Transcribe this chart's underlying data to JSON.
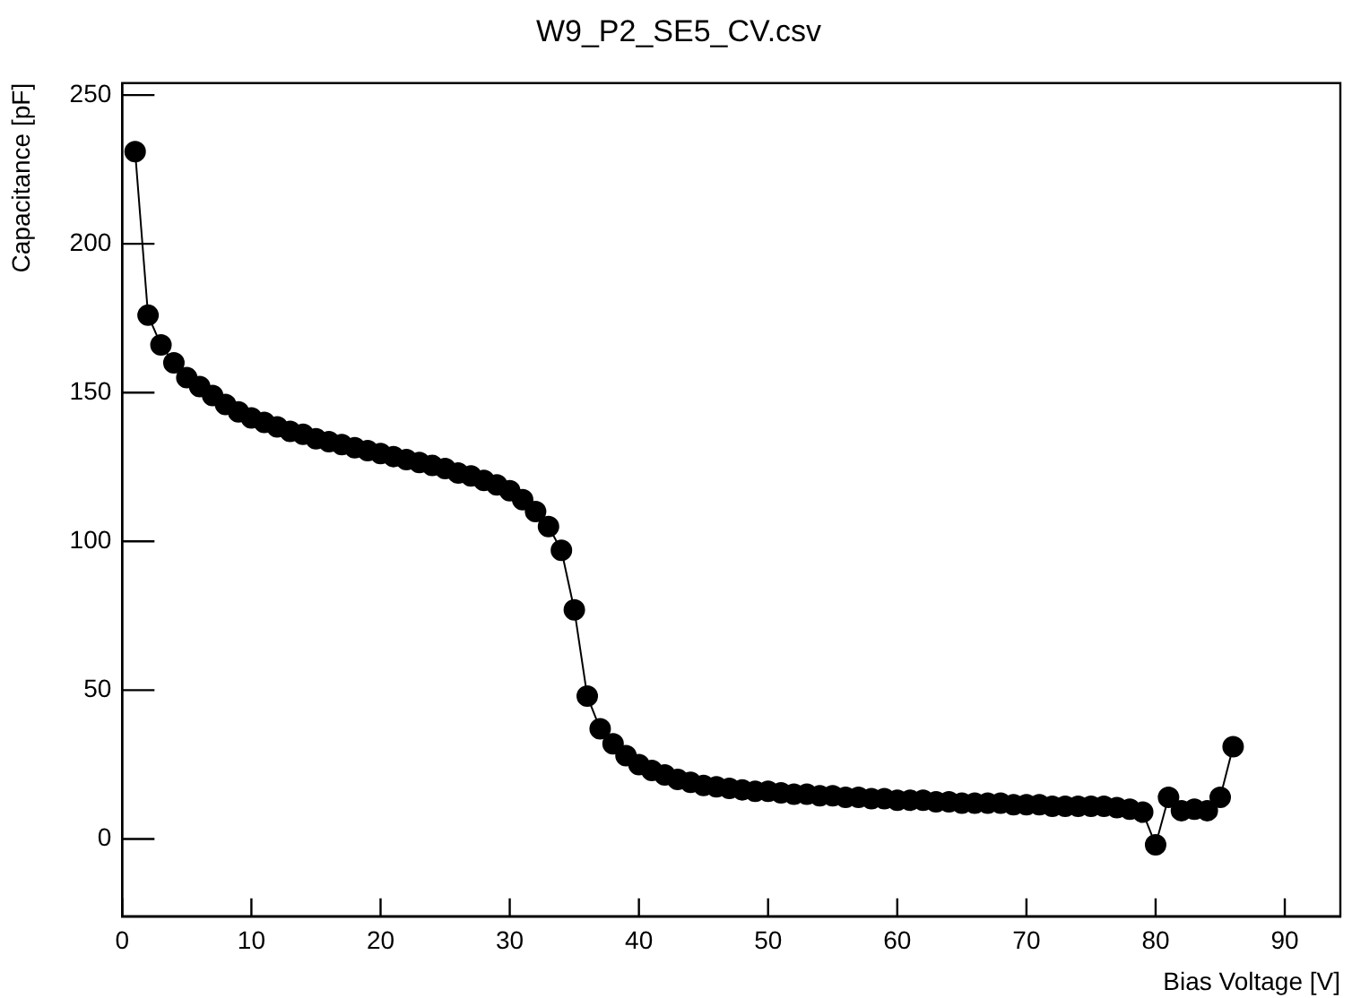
{
  "chart_data": {
    "type": "line",
    "title": "W9_P2_SE5_CV.csv",
    "xlabel": "Bias Voltage [V]",
    "ylabel": "Capacitance [pF]",
    "x": [
      1,
      2,
      3,
      4,
      5,
      6,
      7,
      8,
      9,
      10,
      11,
      12,
      13,
      14,
      15,
      16,
      17,
      18,
      19,
      20,
      21,
      22,
      23,
      24,
      25,
      26,
      27,
      28,
      29,
      30,
      31,
      32,
      33,
      34,
      35,
      36,
      37,
      38,
      39,
      40,
      41,
      42,
      43,
      44,
      45,
      46,
      47,
      48,
      49,
      50,
      51,
      52,
      53,
      54,
      55,
      56,
      57,
      58,
      59,
      60,
      61,
      62,
      63,
      64,
      65,
      66,
      67,
      68,
      69,
      70,
      71,
      72,
      73,
      74,
      75,
      76,
      77,
      78,
      79,
      80,
      81,
      82,
      83,
      84,
      85,
      86
    ],
    "series": [
      {
        "color": "#000000",
        "values": [
          231,
          176,
          166,
          160,
          155,
          152,
          149,
          146,
          143.5,
          141.5,
          140,
          138.5,
          137,
          136,
          134.5,
          133.5,
          132.5,
          131.5,
          130.5,
          129.5,
          128.5,
          127.5,
          126.5,
          125.5,
          124.5,
          123,
          122,
          120.5,
          119,
          117,
          114,
          110,
          105,
          97,
          77,
          48,
          37,
          32,
          28,
          25,
          23,
          21.5,
          20,
          19,
          18,
          17.5,
          17,
          16.5,
          16,
          16,
          15.5,
          15,
          15,
          14.5,
          14.5,
          14,
          14,
          13.5,
          13.5,
          13,
          13,
          13,
          12.5,
          12.5,
          12,
          12,
          12,
          12,
          11.5,
          11.5,
          11.5,
          11,
          11,
          11,
          11,
          11,
          10.5,
          10,
          9,
          -2,
          14,
          9.5,
          10,
          9.5,
          14,
          31
        ]
      }
    ],
    "xlim": [
      0,
      94.3
    ],
    "ylim": [
      -26,
      254
    ],
    "xticks": [
      0,
      10,
      20,
      30,
      40,
      50,
      60,
      70,
      80,
      90
    ],
    "yticks": [
      0,
      50,
      100,
      150,
      200,
      250
    ],
    "grid": false,
    "legend": false,
    "marker": "circle",
    "line_style": "solid"
  }
}
